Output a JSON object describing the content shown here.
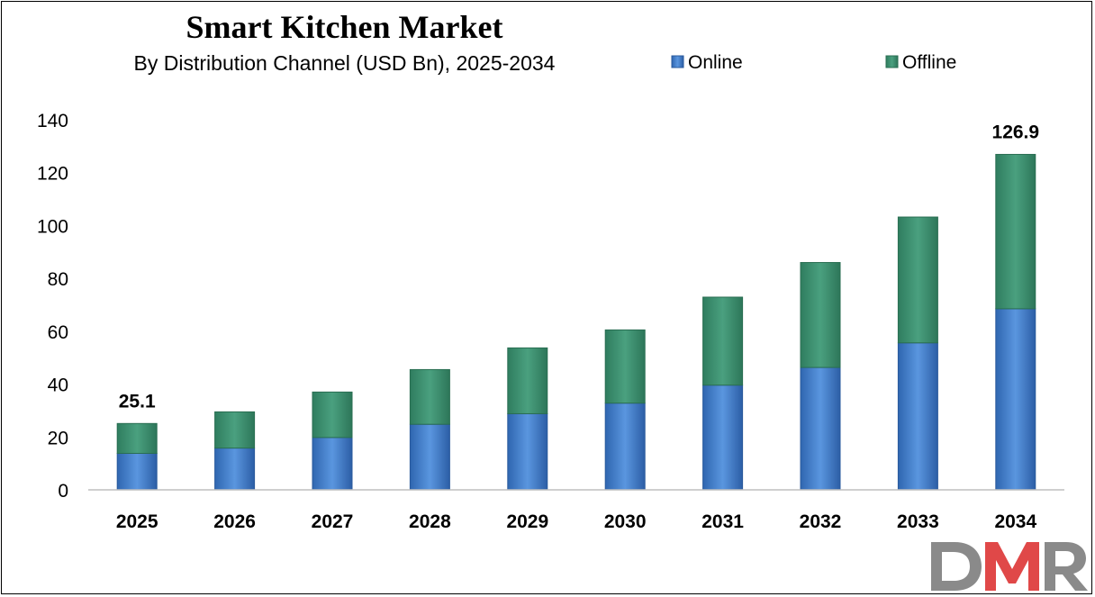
{
  "chart_data": {
    "type": "bar",
    "stacked": true,
    "title": "Smart Kitchen Market",
    "subtitle": "By Distribution Channel (USD Bn), 2025-2034",
    "categories": [
      "2025",
      "2026",
      "2027",
      "2028",
      "2029",
      "2030",
      "2031",
      "2032",
      "2033",
      "2034"
    ],
    "series": [
      {
        "name": "Online",
        "color": "#3b7dd0",
        "values": [
          13.8,
          15.8,
          19.8,
          24.8,
          28.8,
          32.8,
          39.6,
          46.3,
          55.6,
          68.5
        ]
      },
      {
        "name": "Offline",
        "color": "#3a9070",
        "values": [
          11.3,
          13.7,
          17.2,
          20.7,
          24.9,
          27.7,
          33.3,
          39.7,
          47.6,
          58.4
        ]
      }
    ],
    "totals_labels": [
      {
        "category": "2025",
        "label": "25.1"
      },
      {
        "category": "2034",
        "label": "126.9"
      }
    ],
    "ylim": [
      0,
      140
    ],
    "yticks": [
      0,
      20,
      40,
      60,
      80,
      100,
      120,
      140
    ],
    "grid": false,
    "legend_position": "top-right"
  },
  "brand": {
    "logo_text": "DMR",
    "colors": {
      "gray": "#8a8a8a",
      "red": "#e04848"
    }
  }
}
